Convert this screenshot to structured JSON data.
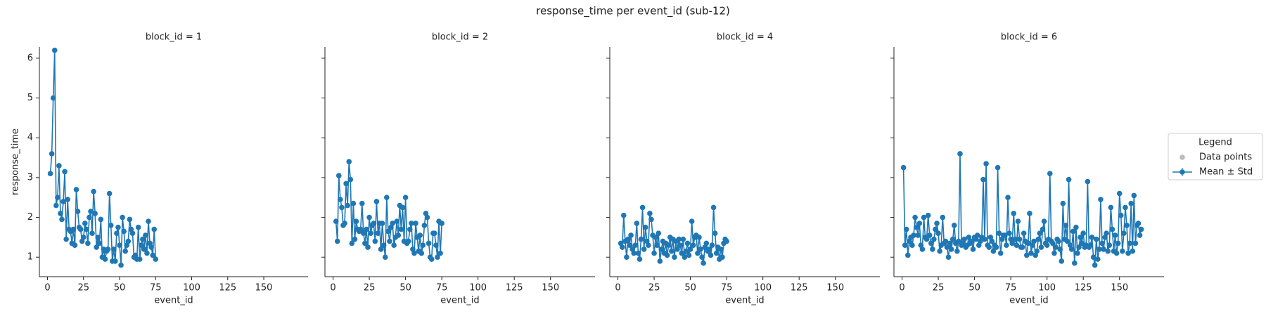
{
  "title": "response_time per event_id (sub-12)",
  "legend": {
    "title": "Legend",
    "entries": [
      {
        "name": "Data points",
        "color": "#bbbbbb"
      },
      {
        "name": "Mean ± Std",
        "color": "#1f77b4"
      }
    ]
  },
  "chart_data": [
    {
      "type": "line",
      "title": "block_id = 1",
      "x_label": "event_id",
      "y_label": "response_time",
      "xlim": [
        -5.6,
        180.7
      ],
      "xticks": [
        0,
        25,
        50,
        75,
        100,
        125,
        150
      ],
      "ylim": [
        0.51,
        6.28
      ],
      "yticks": [
        1,
        2,
        3,
        4,
        5,
        6
      ],
      "x": [
        2,
        3,
        4,
        5,
        6,
        7,
        8,
        9,
        10,
        11,
        12,
        13,
        14,
        15,
        16,
        17,
        18,
        19,
        20,
        21,
        22,
        23,
        24,
        25,
        26,
        27,
        28,
        29,
        30,
        31,
        32,
        33,
        34,
        35,
        36,
        37,
        38,
        39,
        40,
        41,
        42,
        43,
        44,
        45,
        46,
        47,
        48,
        49,
        50,
        51,
        52,
        53,
        54,
        55,
        56,
        57,
        58,
        59,
        60,
        61,
        62,
        63,
        64,
        65,
        66,
        67,
        68,
        69,
        70,
        71,
        72,
        73,
        74,
        75
      ],
      "series": [
        {
          "name": "Mean ± Std",
          "color": "#1f77b4",
          "values": [
            3.1,
            3.6,
            5.0,
            6.2,
            2.3,
            2.5,
            3.3,
            2.1,
            1.95,
            2.4,
            3.15,
            1.45,
            2.45,
            1.7,
            1.65,
            1.35,
            1.7,
            1.3,
            2.7,
            2.15,
            1.75,
            1.7,
            1.4,
            1.5,
            1.85,
            1.7,
            1.35,
            2.0,
            2.15,
            1.6,
            2.65,
            2.1,
            1.25,
            1.5,
            1.35,
            1.95,
            1.0,
            1.2,
            0.95,
            1.15,
            1.2,
            2.6,
            1.8,
            0.9,
            1.2,
            0.9,
            1.6,
            1.75,
            1.3,
            0.8,
            2.0,
            1.65,
            1.15,
            1.3,
            1.4,
            1.95,
            1.7,
            1.6,
            1.0,
            1.05,
            0.95,
            1.75,
            0.95,
            1.3,
            1.45,
            1.2,
            1.55,
            1.1,
            1.9,
            1.35,
            1.25,
            1.05,
            1.7,
            0.95
          ]
        }
      ]
    },
    {
      "type": "line",
      "title": "block_id = 2",
      "x_label": "event_id",
      "xlim": [
        -5.6,
        180.7
      ],
      "xticks": [
        0,
        25,
        50,
        75,
        100,
        125,
        150
      ],
      "ylim": [
        0.51,
        6.28
      ],
      "yticks": [
        1,
        2,
        3,
        4,
        5,
        6
      ],
      "x": [
        2,
        3,
        4,
        5,
        6,
        7,
        8,
        9,
        10,
        11,
        12,
        13,
        14,
        15,
        16,
        17,
        18,
        19,
        20,
        21,
        22,
        23,
        24,
        25,
        26,
        27,
        28,
        29,
        30,
        31,
        32,
        33,
        34,
        35,
        36,
        37,
        38,
        39,
        40,
        41,
        42,
        43,
        44,
        45,
        46,
        47,
        48,
        49,
        50,
        51,
        52,
        53,
        54,
        55,
        56,
        57,
        58,
        59,
        60,
        61,
        62,
        63,
        64,
        65,
        66,
        67,
        68,
        69,
        70,
        71,
        72,
        73,
        74,
        75
      ],
      "series": [
        {
          "name": "Mean ± Std",
          "color": "#1f77b4",
          "values": [
            1.9,
            1.4,
            3.05,
            2.45,
            2.25,
            1.8,
            1.85,
            2.85,
            2.3,
            3.4,
            2.95,
            1.35,
            2.35,
            1.45,
            1.9,
            1.7,
            1.65,
            1.7,
            2.35,
            1.6,
            1.35,
            1.7,
            1.25,
            2.0,
            1.6,
            1.8,
            1.85,
            1.4,
            2.4,
            1.6,
            1.85,
            1.2,
            1.85,
            1.3,
            1.0,
            2.5,
            1.65,
            1.4,
            1.75,
            1.85,
            1.3,
            1.5,
            1.9,
            1.55,
            2.3,
            1.7,
            2.25,
            1.4,
            2.5,
            1.35,
            1.4,
            1.7,
            1.85,
            1.2,
            1.1,
            1.85,
            1.5,
            1.15,
            1.55,
            1.1,
            1.3,
            1.8,
            2.1,
            2.0,
            1.35,
            1.0,
            0.95,
            1.6,
            1.6,
            1.3,
            1.0,
            1.9,
            1.1,
            1.85
          ]
        }
      ]
    },
    {
      "type": "line",
      "title": "block_id = 4",
      "x_label": "event_id",
      "xlim": [
        -5.6,
        180.7
      ],
      "xticks": [
        0,
        25,
        50,
        75,
        100,
        125,
        150
      ],
      "ylim": [
        0.51,
        6.28
      ],
      "yticks": [
        1,
        2,
        3,
        4,
        5,
        6
      ],
      "x": [
        2,
        3,
        4,
        5,
        6,
        7,
        8,
        9,
        10,
        11,
        12,
        13,
        14,
        15,
        16,
        17,
        18,
        19,
        20,
        21,
        22,
        23,
        24,
        25,
        26,
        27,
        28,
        29,
        30,
        31,
        32,
        33,
        34,
        35,
        36,
        37,
        38,
        39,
        40,
        41,
        42,
        43,
        44,
        45,
        46,
        47,
        48,
        49,
        50,
        51,
        52,
        53,
        54,
        55,
        56,
        57,
        58,
        59,
        60,
        61,
        62,
        63,
        64,
        65,
        66,
        67,
        68,
        69,
        70,
        71,
        72,
        73,
        74,
        75
      ],
      "series": [
        {
          "name": "Mean ± Std",
          "color": "#1f77b4",
          "values": [
            1.35,
            1.25,
            2.05,
            1.4,
            1.0,
            1.45,
            1.3,
            1.55,
            1.2,
            1.1,
            1.3,
            1.85,
            1.1,
            0.95,
            1.45,
            2.25,
            1.2,
            1.75,
            1.4,
            1.3,
            2.1,
            1.95,
            1.55,
            1.1,
            1.5,
            1.3,
            1.6,
            0.9,
            1.2,
            1.4,
            1.1,
            1.35,
            1.05,
            1.3,
            1.5,
            1.15,
            1.45,
            1.0,
            1.4,
            1.2,
            1.45,
            1.3,
            1.1,
            1.45,
            1.0,
            1.15,
            1.35,
            1.05,
            1.2,
            1.9,
            1.3,
            1.5,
            1.55,
            1.1,
            1.5,
            1.2,
            1.0,
            0.85,
            1.25,
            1.35,
            1.15,
            1.2,
            1.05,
            1.3,
            2.25,
            1.6,
            1.1,
            1.25,
            0.95,
            1.2,
            1.0,
            1.35,
            1.45,
            1.4
          ]
        }
      ]
    },
    {
      "type": "line",
      "title": "block_id = 6",
      "x_label": "event_id",
      "xlim": [
        -5.6,
        180.7
      ],
      "xticks": [
        0,
        25,
        50,
        75,
        100,
        125,
        150
      ],
      "ylim": [
        0.51,
        6.28
      ],
      "yticks": [
        1,
        2,
        3,
        4,
        5,
        6
      ],
      "x": [
        1,
        2,
        3,
        4,
        5,
        6,
        7,
        8,
        9,
        10,
        11,
        12,
        13,
        14,
        15,
        16,
        17,
        18,
        19,
        20,
        21,
        22,
        23,
        24,
        25,
        26,
        27,
        28,
        29,
        30,
        31,
        32,
        33,
        34,
        35,
        36,
        37,
        38,
        39,
        40,
        41,
        42,
        43,
        44,
        45,
        46,
        47,
        48,
        49,
        50,
        51,
        52,
        53,
        54,
        55,
        56,
        57,
        58,
        59,
        60,
        61,
        62,
        63,
        64,
        65,
        66,
        67,
        68,
        69,
        70,
        71,
        72,
        73,
        74,
        75,
        76,
        77,
        78,
        79,
        80,
        81,
        82,
        83,
        84,
        85,
        86,
        87,
        88,
        89,
        90,
        91,
        92,
        93,
        94,
        95,
        96,
        97,
        98,
        99,
        100,
        101,
        102,
        103,
        104,
        105,
        106,
        107,
        108,
        109,
        110,
        111,
        112,
        113,
        114,
        115,
        116,
        117,
        118,
        119,
        120,
        121,
        122,
        123,
        124,
        125,
        126,
        127,
        128,
        129,
        130,
        131,
        132,
        133,
        134,
        135,
        136,
        137,
        138,
        139,
        140,
        141,
        142,
        143,
        144,
        145,
        146,
        147,
        148,
        149,
        150,
        151,
        152,
        153,
        154,
        155,
        156,
        157,
        158,
        159,
        160,
        161,
        162,
        163,
        164,
        165
      ],
      "series": [
        {
          "name": "Mean ± Std",
          "color": "#1f77b4",
          "values": [
            3.25,
            1.3,
            1.7,
            1.05,
            1.4,
            1.5,
            1.3,
            1.55,
            2.0,
            1.75,
            1.55,
            1.85,
            1.3,
            1.2,
            2.0,
            1.5,
            1.45,
            2.05,
            1.55,
            1.35,
            1.2,
            1.45,
            1.7,
            1.85,
            1.6,
            1.15,
            1.3,
            2.0,
            1.35,
            1.4,
            1.25,
            1.0,
            1.35,
            1.2,
            1.45,
            1.8,
            1.35,
            1.15,
            1.4,
            3.6,
            1.3,
            1.35,
            1.45,
            1.25,
            1.3,
            1.5,
            1.35,
            1.4,
            1.2,
            1.5,
            1.45,
            1.55,
            1.3,
            1.4,
            1.5,
            2.95,
            1.45,
            3.35,
            1.3,
            1.25,
            1.5,
            1.4,
            1.15,
            1.3,
            1.25,
            3.25,
            1.6,
            1.1,
            1.45,
            1.55,
            1.55,
            1.3,
            2.5,
            1.6,
            1.45,
            1.35,
            2.1,
            1.45,
            1.3,
            1.9,
            1.45,
            1.25,
            1.25,
            1.6,
            1.4,
            1.05,
            1.35,
            2.1,
            1.1,
            1.3,
            1.4,
            1.05,
            1.15,
            1.45,
            1.6,
            1.25,
            1.7,
            1.9,
            1.35,
            1.3,
            1.45,
            3.1,
            1.4,
            1.35,
            1.1,
            1.25,
            1.45,
            1.4,
            1.2,
            0.9,
            2.35,
            1.45,
            1.8,
            1.4,
            2.95,
            1.3,
            1.2,
            1.65,
            0.85,
            1.75,
            1.1,
            1.25,
            1.5,
            1.35,
            1.6,
            1.25,
            1.3,
            2.9,
            1.25,
            1.3,
            1.5,
            1.0,
            0.8,
            1.45,
            0.95,
            1.2,
            2.45,
            1.35,
            1.2,
            1.5,
            1.6,
            1.15,
            1.3,
            2.25,
            1.7,
            1.15,
            1.55,
            1.1,
            1.35,
            2.6,
            2.05,
            1.15,
            1.6,
            2.25,
            1.8,
            1.1,
            1.35,
            2.35,
            1.15,
            2.55,
            1.35,
            1.8,
            1.85,
            1.55,
            1.7
          ]
        }
      ]
    }
  ]
}
